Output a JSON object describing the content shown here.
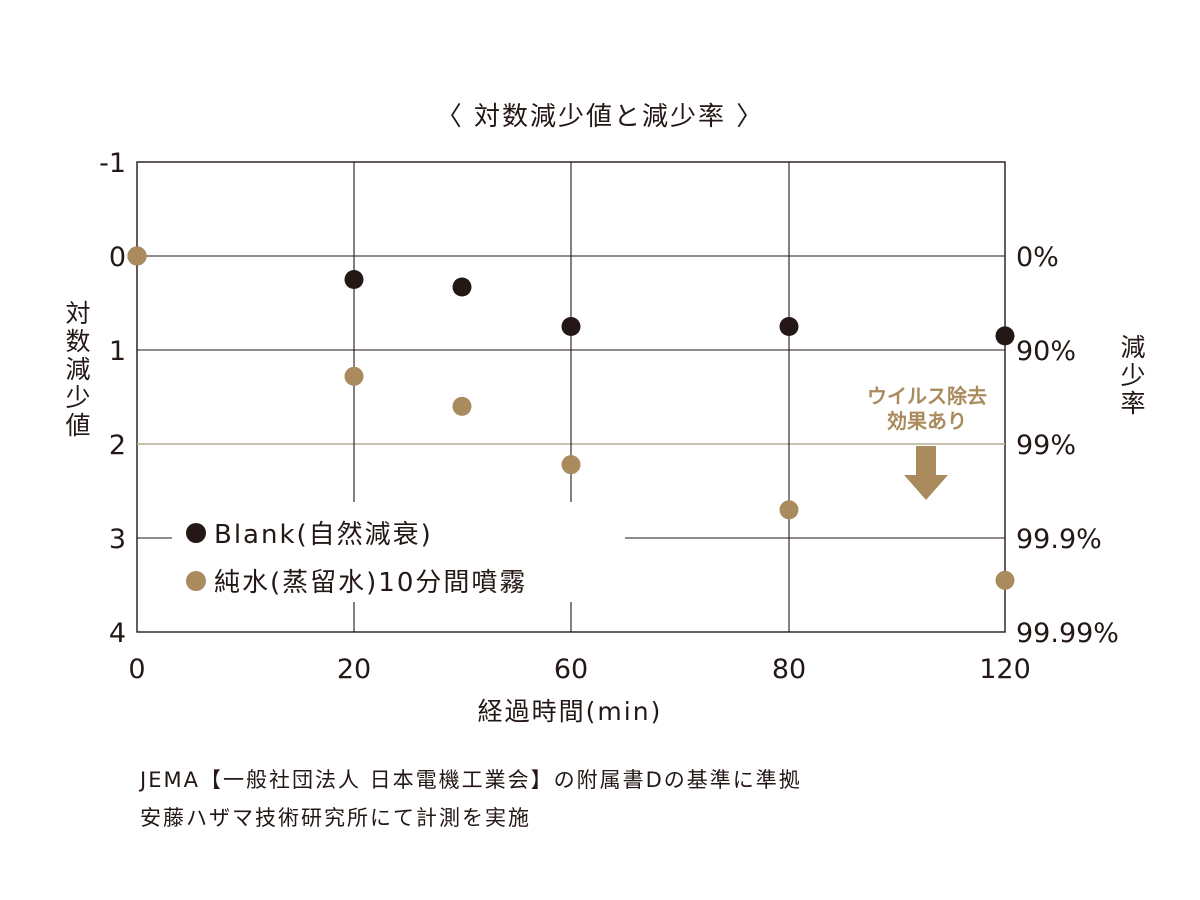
{
  "chart_data": {
    "type": "scatter",
    "title": "〈 対数減少値と減少率 〉",
    "xlabel": "経過時間(min)",
    "ylabel": "対数減少値",
    "ylabel_right": "減少率",
    "x_ticks": [
      "0",
      "20",
      "60",
      "80",
      "120"
    ],
    "y_ticks": [
      "-1",
      "0",
      "1",
      "2",
      "3",
      "4"
    ],
    "y_ticks_right": [
      "0%",
      "90%",
      "99%",
      "99.9%",
      "99.99%"
    ],
    "ylim": [
      -1,
      4
    ],
    "y_inverted": true,
    "series": [
      {
        "name": "Blank(自然減衰)",
        "color": "#231815",
        "x": [
          "0",
          "20",
          "30",
          "60",
          "80",
          "120"
        ],
        "y": [
          0,
          0.25,
          0.33,
          0.75,
          0.75,
          0.85
        ]
      },
      {
        "name": "純水(蒸留水)10分間噴霧",
        "color": "#a98b5e",
        "x": [
          "0",
          "20",
          "30",
          "60",
          "80",
          "120"
        ],
        "y": [
          0,
          1.28,
          1.6,
          2.22,
          2.7,
          3.45
        ]
      }
    ],
    "threshold": {
      "y": 2,
      "color": "#b3ad94"
    },
    "annotation": {
      "line1": "ウイルス除去",
      "line2": "効果あり",
      "color": "#a98b5e"
    },
    "grid": true,
    "legend_position": "bottom-left"
  },
  "notes": {
    "line1": "JEMA【一般社団法人 日本電機工業会】の附属書Dの基準に準拠",
    "line2": "安藤ハザマ技術研究所にて計測を実施"
  }
}
